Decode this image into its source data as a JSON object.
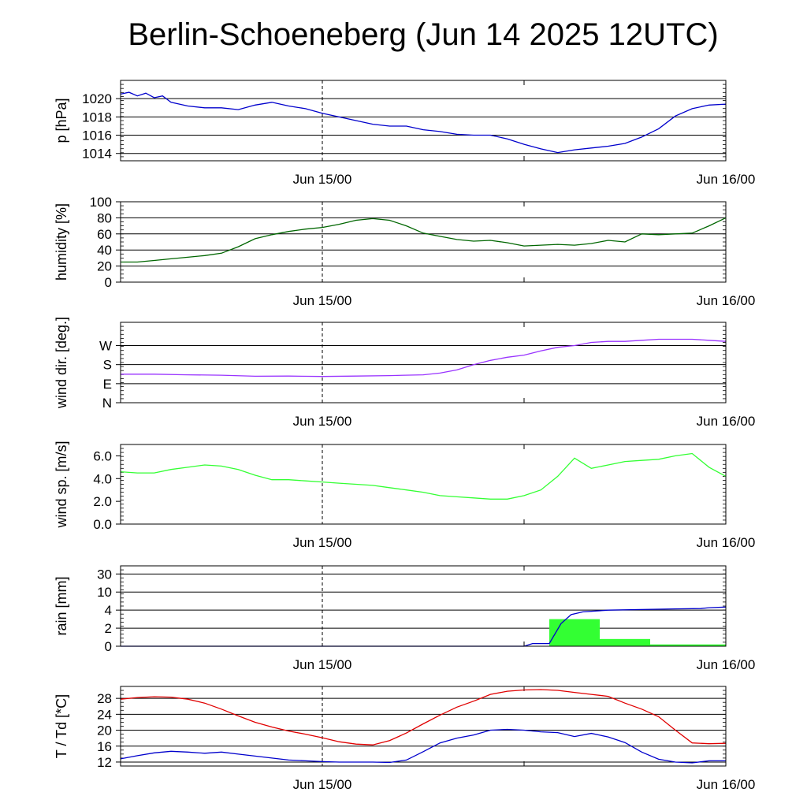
{
  "title": "Berlin-Schoeneberg (Jun 14 2025 12UTC)",
  "colors": {
    "pressure": "#0000cc",
    "humidity": "#006600",
    "wind_dir": "#9933ff",
    "wind_speed": "#33ff33",
    "rain_bar": "#33ff33",
    "rain_cum": "#0000cc",
    "temperature": "#e00000",
    "dewpoint": "#0000cc"
  },
  "chart_data": [
    {
      "type": "line",
      "ylabel": "p [hPa]",
      "x_unit": "hours since Jun 14 12UTC",
      "xlim": [
        0,
        36
      ],
      "ylim": [
        1013.2,
        1022
      ],
      "yticks": [
        1014,
        1016,
        1018,
        1020
      ],
      "yticklabels": [
        "1014",
        "1016",
        "1018",
        "1020"
      ],
      "gridlines": [
        1014,
        1016,
        1018,
        1020
      ],
      "xticks": [
        12,
        36
      ],
      "xticklabels": [
        "Jun 15/00",
        "Jun 16/00"
      ],
      "series": [
        {
          "color_key": "pressure",
          "x": [
            0,
            0.5,
            1,
            1.5,
            2,
            2.5,
            3,
            3.5,
            4,
            5,
            6,
            7,
            8,
            9,
            10,
            11,
            12,
            13,
            14,
            15,
            16,
            17,
            18,
            19,
            20,
            21,
            22,
            23,
            24,
            25,
            26,
            27,
            28,
            29,
            30,
            31,
            32,
            33,
            34,
            35,
            36
          ],
          "y": [
            1020.5,
            1020.7,
            1020.3,
            1020.6,
            1020.1,
            1020.3,
            1019.6,
            1019.4,
            1019.2,
            1019,
            1019,
            1018.8,
            1019.3,
            1019.6,
            1019.2,
            1018.9,
            1018.4,
            1018.0,
            1017.6,
            1017.2,
            1017.0,
            1017.0,
            1016.6,
            1016.4,
            1016.1,
            1016.0,
            1016.0,
            1015.6,
            1015.0,
            1014.5,
            1014.1,
            1014.4,
            1014.6,
            1014.8,
            1015.1,
            1015.8,
            1016.7,
            1018.1,
            1018.9,
            1019.3,
            1019.4
          ]
        }
      ]
    },
    {
      "type": "line",
      "ylabel": "humidity [%]",
      "xlim": [
        0,
        36
      ],
      "ylim": [
        0,
        100
      ],
      "yticks": [
        0,
        20,
        40,
        60,
        80,
        100
      ],
      "yticklabels": [
        "0",
        "20",
        "40",
        "60",
        "80",
        "100"
      ],
      "gridlines": [
        20,
        40,
        60,
        80
      ],
      "xticks": [
        12,
        36
      ],
      "xticklabels": [
        "Jun 15/00",
        "Jun 16/00"
      ],
      "series": [
        {
          "color_key": "humidity",
          "x": [
            0,
            1,
            2,
            3,
            4,
            5,
            6,
            7,
            8,
            9,
            10,
            11,
            12,
            13,
            14,
            15,
            16,
            17,
            18,
            19,
            20,
            21,
            22,
            23,
            24,
            25,
            26,
            27,
            28,
            29,
            30,
            31,
            32,
            33,
            34,
            35,
            36
          ],
          "y": [
            25,
            25,
            27,
            29,
            31,
            33,
            36,
            44,
            54,
            59,
            63,
            66,
            68,
            72,
            77,
            79,
            77,
            70,
            61,
            57,
            53,
            51,
            52,
            49,
            45,
            46,
            47,
            46,
            48,
            52,
            50,
            60,
            59,
            60,
            61,
            70,
            80
          ]
        }
      ]
    },
    {
      "type": "line",
      "ylabel": "wind dir. [deg.]",
      "xlim": [
        0,
        36
      ],
      "ylim": [
        0,
        380
      ],
      "yticks": [
        0,
        90,
        180,
        270
      ],
      "yticklabels": [
        "N",
        "E",
        "S",
        "W"
      ],
      "gridlines": [
        90,
        180,
        270
      ],
      "xticks": [
        12,
        36
      ],
      "xticklabels": [
        "Jun 15/00",
        "Jun 16/00"
      ],
      "series": [
        {
          "color_key": "wind_dir",
          "x": [
            0,
            2,
            4,
            6,
            8,
            10,
            12,
            14,
            16,
            18,
            19,
            20,
            21,
            22,
            23,
            24,
            25,
            26,
            27,
            28,
            29,
            30,
            31,
            32,
            33,
            34,
            35,
            36
          ],
          "y": [
            135,
            135,
            132,
            130,
            125,
            126,
            124,
            126,
            128,
            132,
            140,
            155,
            180,
            200,
            215,
            225,
            245,
            262,
            270,
            285,
            290,
            290,
            295,
            300,
            300,
            300,
            295,
            290
          ]
        }
      ]
    },
    {
      "type": "line",
      "ylabel": "wind sp. [m/s]",
      "xlim": [
        0,
        36
      ],
      "ylim": [
        0,
        7
      ],
      "yticks": [
        0,
        2,
        4,
        6
      ],
      "yticklabels": [
        "0.0",
        "2.0",
        "4.0",
        "6.0"
      ],
      "gridlines": [],
      "xticks": [
        12,
        36
      ],
      "xticklabels": [
        "Jun 15/00",
        "Jun 16/00"
      ],
      "series": [
        {
          "color_key": "wind_speed",
          "x": [
            0,
            1,
            2,
            3,
            4,
            5,
            6,
            7,
            8,
            9,
            10,
            11,
            12,
            13,
            14,
            15,
            16,
            17,
            18,
            19,
            20,
            21,
            22,
            23,
            24,
            25,
            26,
            27,
            28,
            29,
            30,
            31,
            32,
            33,
            34,
            35,
            36
          ],
          "y": [
            4.6,
            4.5,
            4.5,
            4.8,
            5.0,
            5.2,
            5.1,
            4.8,
            4.3,
            3.9,
            3.9,
            3.8,
            3.7,
            3.6,
            3.5,
            3.4,
            3.2,
            3.0,
            2.8,
            2.5,
            2.4,
            2.3,
            2.2,
            2.2,
            2.5,
            3.0,
            4.2,
            5.8,
            4.9,
            5.2,
            5.5,
            5.6,
            5.7,
            6.0,
            6.2,
            5.0,
            4.2
          ]
        }
      ]
    },
    {
      "type": "bar+line",
      "ylabel": "rain [mm]",
      "xlim": [
        0,
        36
      ],
      "yticklabels": [
        "0",
        "2",
        "4",
        "10",
        "30"
      ],
      "ytick_values": [
        0,
        2,
        4,
        10,
        30
      ],
      "gridlines": [
        2,
        4,
        10,
        30
      ],
      "xticks": [
        12,
        36
      ],
      "xticklabels": [
        "Jun 15/00",
        "Jun 16/00"
      ],
      "bars": [
        {
          "x0": 25.5,
          "x1": 28.5,
          "value": 3
        },
        {
          "x0": 28.5,
          "x1": 31.5,
          "value": 0.8
        },
        {
          "x0": 31.5,
          "x1": 36,
          "value": 0.2
        }
      ],
      "cumulative": {
        "x": [
          0,
          24,
          24.5,
          25.5,
          26.2,
          26.8,
          27.5,
          29,
          31,
          33,
          34.5,
          35,
          36
        ],
        "y": [
          0,
          0,
          0.3,
          0.3,
          2.5,
          3.5,
          3.8,
          4,
          4.2,
          4.4,
          4.5,
          4.8,
          5
        ]
      }
    },
    {
      "type": "line",
      "ylabel": "T / Td [*C]",
      "xlim": [
        0,
        36
      ],
      "ylim": [
        11,
        31
      ],
      "yticks": [
        12,
        16,
        20,
        24,
        28
      ],
      "yticklabels": [
        "12",
        "16",
        "20",
        "24",
        "28"
      ],
      "gridlines": [
        12,
        16,
        20,
        24,
        28
      ],
      "xticks": [
        12,
        36
      ],
      "xticklabels": [
        "Jun 15/00",
        "Jun 16/00"
      ],
      "series": [
        {
          "name": "T",
          "color_key": "temperature",
          "x": [
            0,
            1,
            2,
            3,
            4,
            5,
            6,
            7,
            8,
            9,
            10,
            11,
            12,
            13,
            14,
            15,
            16,
            17,
            18,
            19,
            20,
            21,
            22,
            23,
            24,
            25,
            26,
            27,
            28,
            29,
            30,
            31,
            32,
            33,
            34,
            35,
            36
          ],
          "y": [
            27.8,
            28.2,
            28.4,
            28.3,
            27.8,
            26.8,
            25.3,
            23.6,
            22.0,
            20.8,
            19.8,
            19.0,
            18.1,
            17.1,
            16.5,
            16.3,
            17.4,
            19.3,
            21.6,
            23.8,
            25.8,
            27.3,
            29.0,
            29.8,
            30.1,
            30.2,
            30.0,
            29.5,
            29.0,
            28.5,
            26.8,
            25.3,
            23.4,
            20.0,
            16.8,
            16.6,
            16.7
          ]
        },
        {
          "name": "Td",
          "color_key": "dewpoint",
          "x": [
            0,
            1,
            2,
            3,
            4,
            5,
            6,
            7,
            8,
            9,
            10,
            11,
            12,
            13,
            14,
            15,
            16,
            17,
            18,
            19,
            20,
            21,
            22,
            23,
            24,
            25,
            26,
            27,
            28,
            29,
            30,
            31,
            32,
            33,
            34,
            35,
            36
          ],
          "y": [
            12.8,
            13.6,
            14.3,
            14.7,
            14.5,
            14.2,
            14.5,
            14.0,
            13.5,
            13.0,
            12.5,
            12.3,
            12.1,
            12.0,
            12.0,
            12.0,
            11.9,
            12.5,
            14.6,
            16.8,
            18.0,
            18.8,
            20.0,
            20.2,
            20.0,
            19.6,
            19.4,
            18.4,
            19.2,
            18.3,
            16.9,
            14.5,
            12.7,
            12.0,
            11.8,
            12.3,
            12.3
          ]
        }
      ]
    }
  ]
}
